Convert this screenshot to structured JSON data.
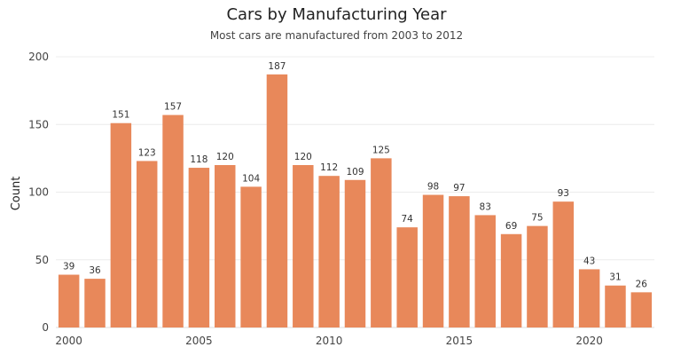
{
  "chart_data": {
    "type": "bar",
    "title": "Cars by Manufacturing Year",
    "subtitle": "Most cars are manufactured from 2003 to 2012",
    "xlabel": "",
    "ylabel": "Count",
    "x": [
      2000,
      2001,
      2002,
      2003,
      2004,
      2005,
      2006,
      2007,
      2008,
      2009,
      2010,
      2011,
      2012,
      2013,
      2014,
      2015,
      2016,
      2017,
      2018,
      2019,
      2020,
      2021,
      2022
    ],
    "values": [
      39,
      36,
      151,
      123,
      157,
      118,
      120,
      104,
      187,
      120,
      112,
      109,
      125,
      74,
      98,
      97,
      83,
      69,
      75,
      93,
      43,
      31,
      26
    ],
    "ylim": [
      0,
      200
    ],
    "yticks": [
      0,
      50,
      100,
      150,
      200
    ],
    "xticks": [
      2000,
      2005,
      2010,
      2015,
      2020
    ],
    "grid": "horizontal",
    "bar_color": "#E8885A",
    "data_labels": true,
    "legend": "none"
  }
}
